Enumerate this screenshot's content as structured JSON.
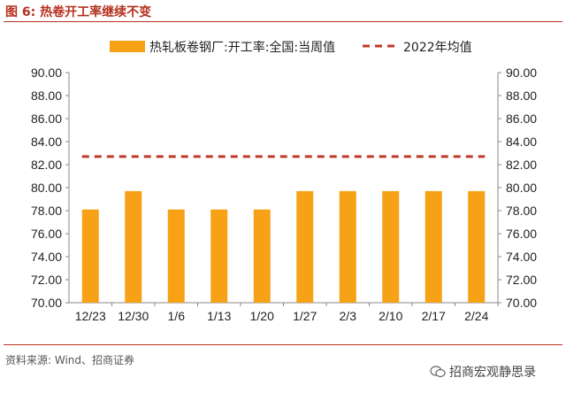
{
  "figure": {
    "title": "图 6:  热卷开工率继续不变",
    "source": "资料来源:  Wind、招商证券",
    "watermark": "招商宏观静思录"
  },
  "chart_data": {
    "type": "bar",
    "categories": [
      "12/23",
      "12/30",
      "1/6",
      "1/13",
      "1/20",
      "1/27",
      "2/3",
      "2/10",
      "2/17",
      "2/24"
    ],
    "series": [
      {
        "name": "热轧板卷钢厂:开工率:全国:当周值",
        "type": "bar",
        "color": "#f7a116",
        "values": [
          78.1,
          79.7,
          78.1,
          78.1,
          78.1,
          79.7,
          79.7,
          79.7,
          79.7,
          79.7
        ]
      },
      {
        "name": "2022年均值",
        "type": "dashed-line",
        "color": "#c0392b",
        "values": [
          82.7,
          82.7,
          82.7,
          82.7,
          82.7,
          82.7,
          82.7,
          82.7,
          82.7,
          82.7
        ]
      }
    ],
    "ylim": [
      70,
      90
    ],
    "yticks": [
      "70.00",
      "72.00",
      "74.00",
      "76.00",
      "78.00",
      "80.00",
      "82.00",
      "84.00",
      "86.00",
      "88.00",
      "90.00"
    ],
    "y2ticks": [
      "70.00",
      "72.00",
      "74.00",
      "76.00",
      "78.00",
      "80.00",
      "82.00",
      "84.00",
      "86.00",
      "88.00",
      "90.00"
    ],
    "legend_position": "top",
    "grid": false
  }
}
